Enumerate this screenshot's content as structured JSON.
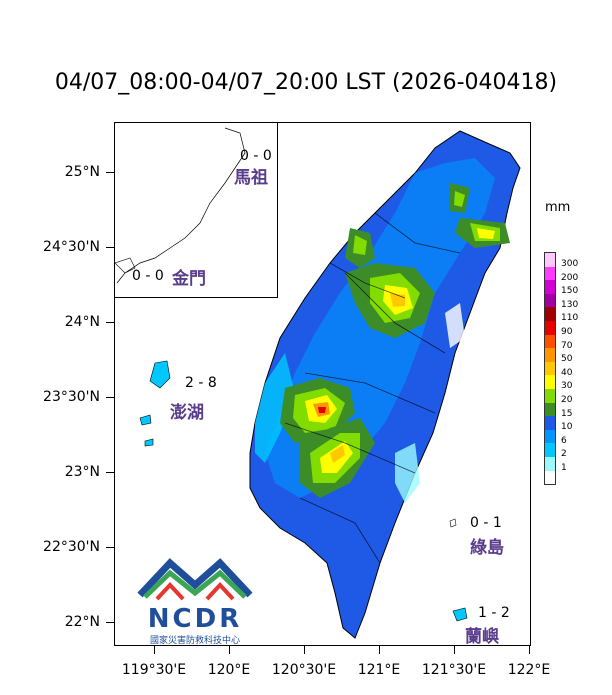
{
  "title": "04/07_08:00-04/07_20:00 LST (2026-040418)",
  "lat_labels": [
    "25°N",
    "24°30'N",
    "24°N",
    "23°30'N",
    "23°N",
    "22°30'N",
    "22°N"
  ],
  "lon_labels": [
    "119°30'E",
    "120°E",
    "120°30'E",
    "121°E",
    "121°30'E",
    "122°E"
  ],
  "unit": "mm",
  "legend": [
    {
      "label": "300",
      "color": "#ffc8ff"
    },
    {
      "label": "200",
      "color": "#ff3cff"
    },
    {
      "label": "150",
      "color": "#d200d2"
    },
    {
      "label": "130",
      "color": "#a000a0"
    },
    {
      "label": "110",
      "color": "#a00000"
    },
    {
      "label": "90",
      "color": "#e60000"
    },
    {
      "label": "70",
      "color": "#ff5000"
    },
    {
      "label": "50",
      "color": "#ff9600"
    },
    {
      "label": "40",
      "color": "#ffc800"
    },
    {
      "label": "30",
      "color": "#ffff00"
    },
    {
      "label": "20",
      "color": "#82dc00"
    },
    {
      "label": "15",
      "color": "#3c8c28"
    },
    {
      "label": "10",
      "color": "#1e5ae6"
    },
    {
      "label": "6",
      "color": "#0096ff"
    },
    {
      "label": "2",
      "color": "#00c8ff"
    },
    {
      "label": "1",
      "color": "#9bfaff"
    },
    {
      "label": "",
      "color": "#ffffff"
    }
  ],
  "regions": {
    "matsu": {
      "name": "馬祖",
      "count": "0 - 0"
    },
    "kinmen": {
      "name": "金門",
      "count": "0 - 0"
    },
    "penghu": {
      "name": "澎湖",
      "count": "2 - 8"
    },
    "green_island": {
      "name": "綠島",
      "count": "0 - 1"
    },
    "orchid_island": {
      "name": "蘭嶼",
      "count": "1 - 2"
    }
  },
  "logo": {
    "text": "NCDR",
    "subtitle": "國家災害防救科技中心"
  }
}
